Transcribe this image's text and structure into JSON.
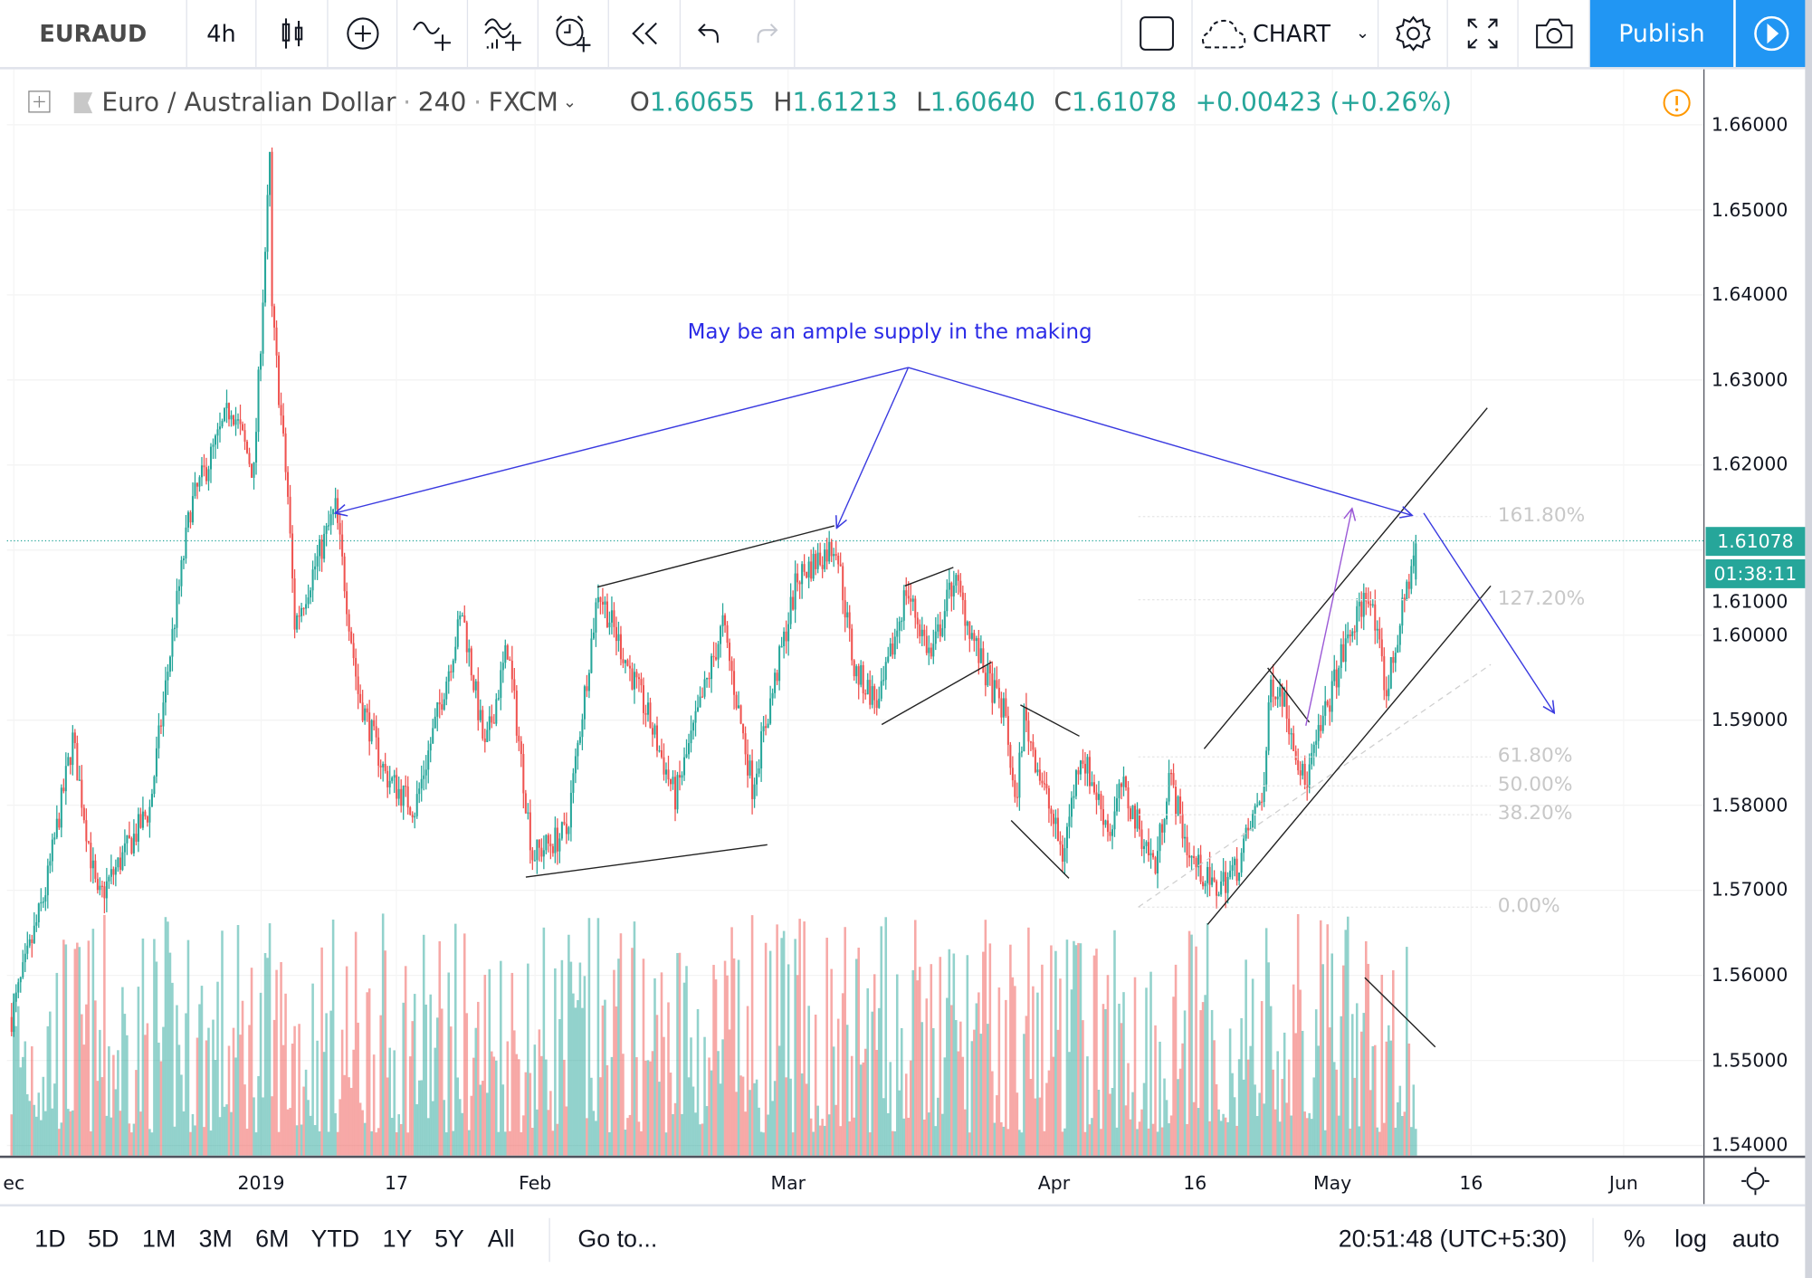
{
  "toolbar": {
    "symbol": "EURAUD",
    "interval": "4h",
    "layout_label": "CHART",
    "publish_label": "Publish",
    "icons": [
      "candles-icon",
      "add-indicator-icon",
      "compare-icon",
      "indicators-icon",
      "alert-icon",
      "replay-icon",
      "undo-icon",
      "redo-icon",
      "layout-icon",
      "cloud-icon",
      "gear-icon",
      "fullscreen-icon",
      "camera-icon",
      "play-icon"
    ]
  },
  "legend": {
    "title": "Euro / Australian Dollar",
    "interval": "240",
    "exchange": "FXCM",
    "o_label": "O",
    "o": "1.60655",
    "h_label": "H",
    "h": "1.61213",
    "l_label": "L",
    "l": "1.60640",
    "c_label": "C",
    "c": "1.61078",
    "change": "+0.00423 (+0.26%)"
  },
  "price_axis": {
    "labels": [
      "1.66000",
      "1.65000",
      "1.64000",
      "1.63000",
      "1.62000",
      "1.61000",
      "1.60000",
      "1.59000",
      "1.58000",
      "1.57000",
      "1.56000",
      "1.55000",
      "1.54000"
    ],
    "current_price": "1.61078",
    "countdown": "01:38:11"
  },
  "time_axis": {
    "labels": [
      "ec",
      "2019",
      "17",
      "Feb",
      "Mar",
      "Apr",
      "16",
      "May",
      "16",
      "Jun"
    ]
  },
  "bottom_bar": {
    "ranges": [
      "1D",
      "5D",
      "1M",
      "3M",
      "6M",
      "YTD",
      "1Y",
      "5Y",
      "All"
    ],
    "goto": "Go to...",
    "clock": "20:51:48 (UTC+5:30)",
    "percent": "%",
    "log": "log",
    "auto": "auto"
  },
  "colors": {
    "up": "#26a69a",
    "down": "#ef5350",
    "accent": "#2196f3",
    "annotation": "#2a2ae6",
    "arrow_purple": "#9b59d6"
  },
  "chart_data": {
    "type": "candlestick",
    "symbol": "EURAUD",
    "interval": "240",
    "ylim": [
      1.54,
      1.66
    ],
    "yticks": [
      1.66,
      1.65,
      1.64,
      1.63,
      1.62,
      1.61,
      1.6,
      1.59,
      1.58,
      1.57,
      1.56,
      1.55,
      1.54
    ],
    "price_path": [
      [
        0,
        1.5551
      ],
      [
        15,
        1.57
      ],
      [
        27,
        1.5877
      ],
      [
        38,
        1.5687
      ],
      [
        61,
        1.5796
      ],
      [
        71,
        1.6
      ],
      [
        79,
        1.615
      ],
      [
        97,
        1.6271
      ],
      [
        107,
        1.619
      ],
      [
        114,
        1.6557
      ],
      [
        115,
        1.638
      ],
      [
        122,
        1.6162
      ],
      [
        125,
        1.6013
      ],
      [
        143,
        1.6149
      ],
      [
        153,
        1.5932
      ],
      [
        165,
        1.5836
      ],
      [
        178,
        1.5796
      ],
      [
        199,
        1.6027
      ],
      [
        209,
        1.5864
      ],
      [
        219,
        1.5986
      ],
      [
        230,
        1.5741
      ],
      [
        245,
        1.5768
      ],
      [
        259,
        1.6054
      ],
      [
        281,
        1.5904
      ],
      [
        293,
        1.5809
      ],
      [
        314,
        1.6013
      ],
      [
        327,
        1.5823
      ],
      [
        347,
        1.6068
      ],
      [
        364,
        1.6108
      ],
      [
        372,
        1.5959
      ],
      [
        383,
        1.5918
      ],
      [
        395,
        1.6054
      ],
      [
        406,
        1.5973
      ],
      [
        416,
        1.6068
      ],
      [
        429,
        1.5959
      ],
      [
        439,
        1.5904
      ],
      [
        443,
        1.5796
      ],
      [
        447,
        1.5904
      ],
      [
        464,
        1.5741
      ],
      [
        472,
        1.5864
      ],
      [
        485,
        1.5768
      ],
      [
        490,
        1.5823
      ],
      [
        505,
        1.5727
      ],
      [
        511,
        1.5836
      ],
      [
        520,
        1.5741
      ],
      [
        531,
        1.57
      ],
      [
        541,
        1.5727
      ],
      [
        553,
        1.5823
      ],
      [
        556,
        1.5945
      ],
      [
        561,
        1.5932
      ],
      [
        571,
        1.5823
      ],
      [
        587,
        1.5973
      ],
      [
        599,
        1.6054
      ],
      [
        607,
        1.5932
      ],
      [
        620,
        1.6108
      ]
    ],
    "annotations": [
      {
        "text": "May be an ample supply in the making"
      }
    ],
    "fib_levels": [
      "161.80%",
      "127.20%",
      "61.80%",
      "50.00%",
      "38.20%",
      "0.00%"
    ]
  }
}
